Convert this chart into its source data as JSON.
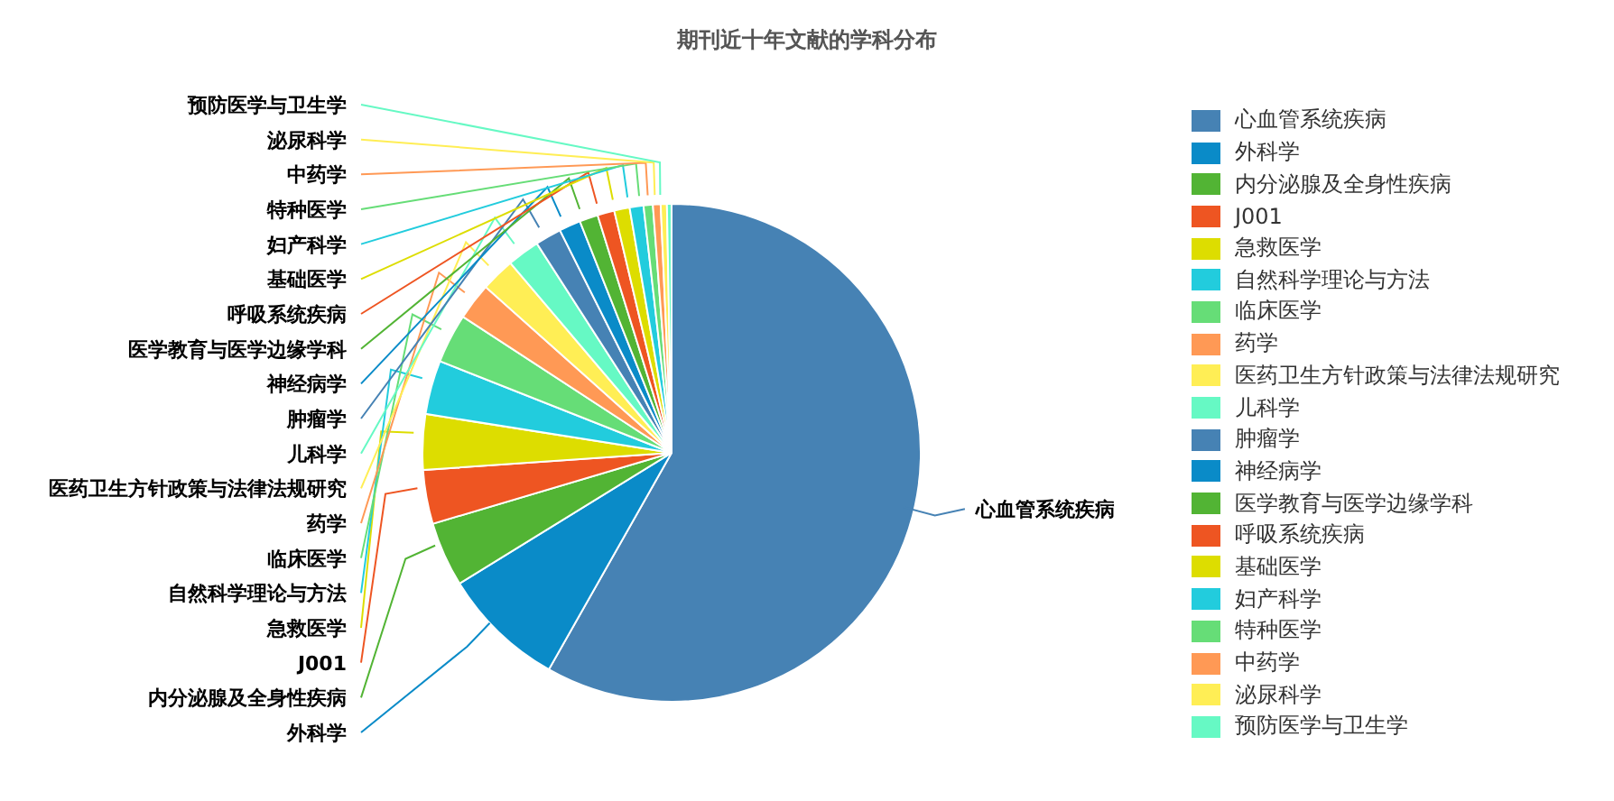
{
  "chart_data": {
    "type": "pie",
    "title": "期刊近十年文献的学科分布",
    "legend": "right",
    "categories": [
      "心血管系统疾病",
      "外科学",
      "内分泌腺及全身性疾病",
      "J001",
      "急救医学",
      "自然科学理论与方法",
      "临床医学",
      "药学",
      "医药卫生方针政策与法律法规研究",
      "儿科学",
      "肿瘤学",
      "神经病学",
      "医学教育与医学边缘学科",
      "呼吸系统疾病",
      "基础医学",
      "妇产科学",
      "特种医学",
      "中药学",
      "泌尿科学",
      "预防医学与卫生学"
    ],
    "values": [
      58.2,
      8,
      4.2,
      3.5,
      3.6,
      3.5,
      3.2,
      2.4,
      2.2,
      2.1,
      1.7,
      1.4,
      1.2,
      1.1,
      1.0,
      0.9,
      0.6,
      0.5,
      0.4,
      0.3
    ],
    "colors": [
      "#4682b4",
      "#0a8bc8",
      "#52b434",
      "#ee5522",
      "#dddd00",
      "#22ccdd",
      "#66dd77",
      "#ff9955",
      "#ffee55",
      "#66f9c4",
      "#4682b4",
      "#0a8bc8",
      "#52b434",
      "#ee5522",
      "#dddd00",
      "#22ccdd",
      "#66dd77",
      "#ff9955",
      "#ffee55",
      "#66f9c4"
    ]
  }
}
